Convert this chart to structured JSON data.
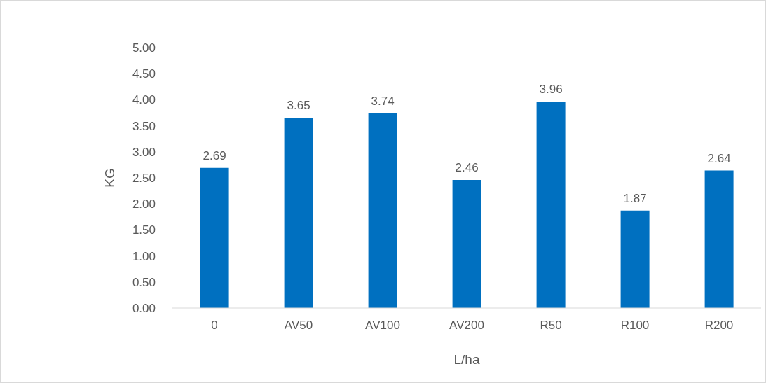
{
  "chart_data": {
    "type": "bar",
    "xlabel": "L/ha",
    "ylabel": "KG",
    "categories": [
      "0",
      "AV50",
      "AV100",
      "AV200",
      "R50",
      "R100",
      "R200"
    ],
    "values": [
      2.69,
      3.65,
      3.74,
      2.46,
      3.96,
      1.87,
      2.64
    ],
    "color": "#0070c0",
    "data_labels": true,
    "ylim": [
      0,
      5
    ],
    "yticks": [
      {
        "value": 0,
        "label": "0.00"
      },
      {
        "value": 0.5,
        "label": "0.50"
      },
      {
        "value": 1,
        "label": "1.00"
      },
      {
        "value": 1.5,
        "label": "1.50"
      },
      {
        "value": 2,
        "label": "2.00"
      },
      {
        "value": 2.5,
        "label": "2.50"
      },
      {
        "value": 3,
        "label": "3.00"
      },
      {
        "value": 3.5,
        "label": "3.50"
      },
      {
        "value": 4,
        "label": "4.00"
      },
      {
        "value": 4.5,
        "label": "4.50"
      },
      {
        "value": 5,
        "label": "5.00"
      }
    ]
  }
}
